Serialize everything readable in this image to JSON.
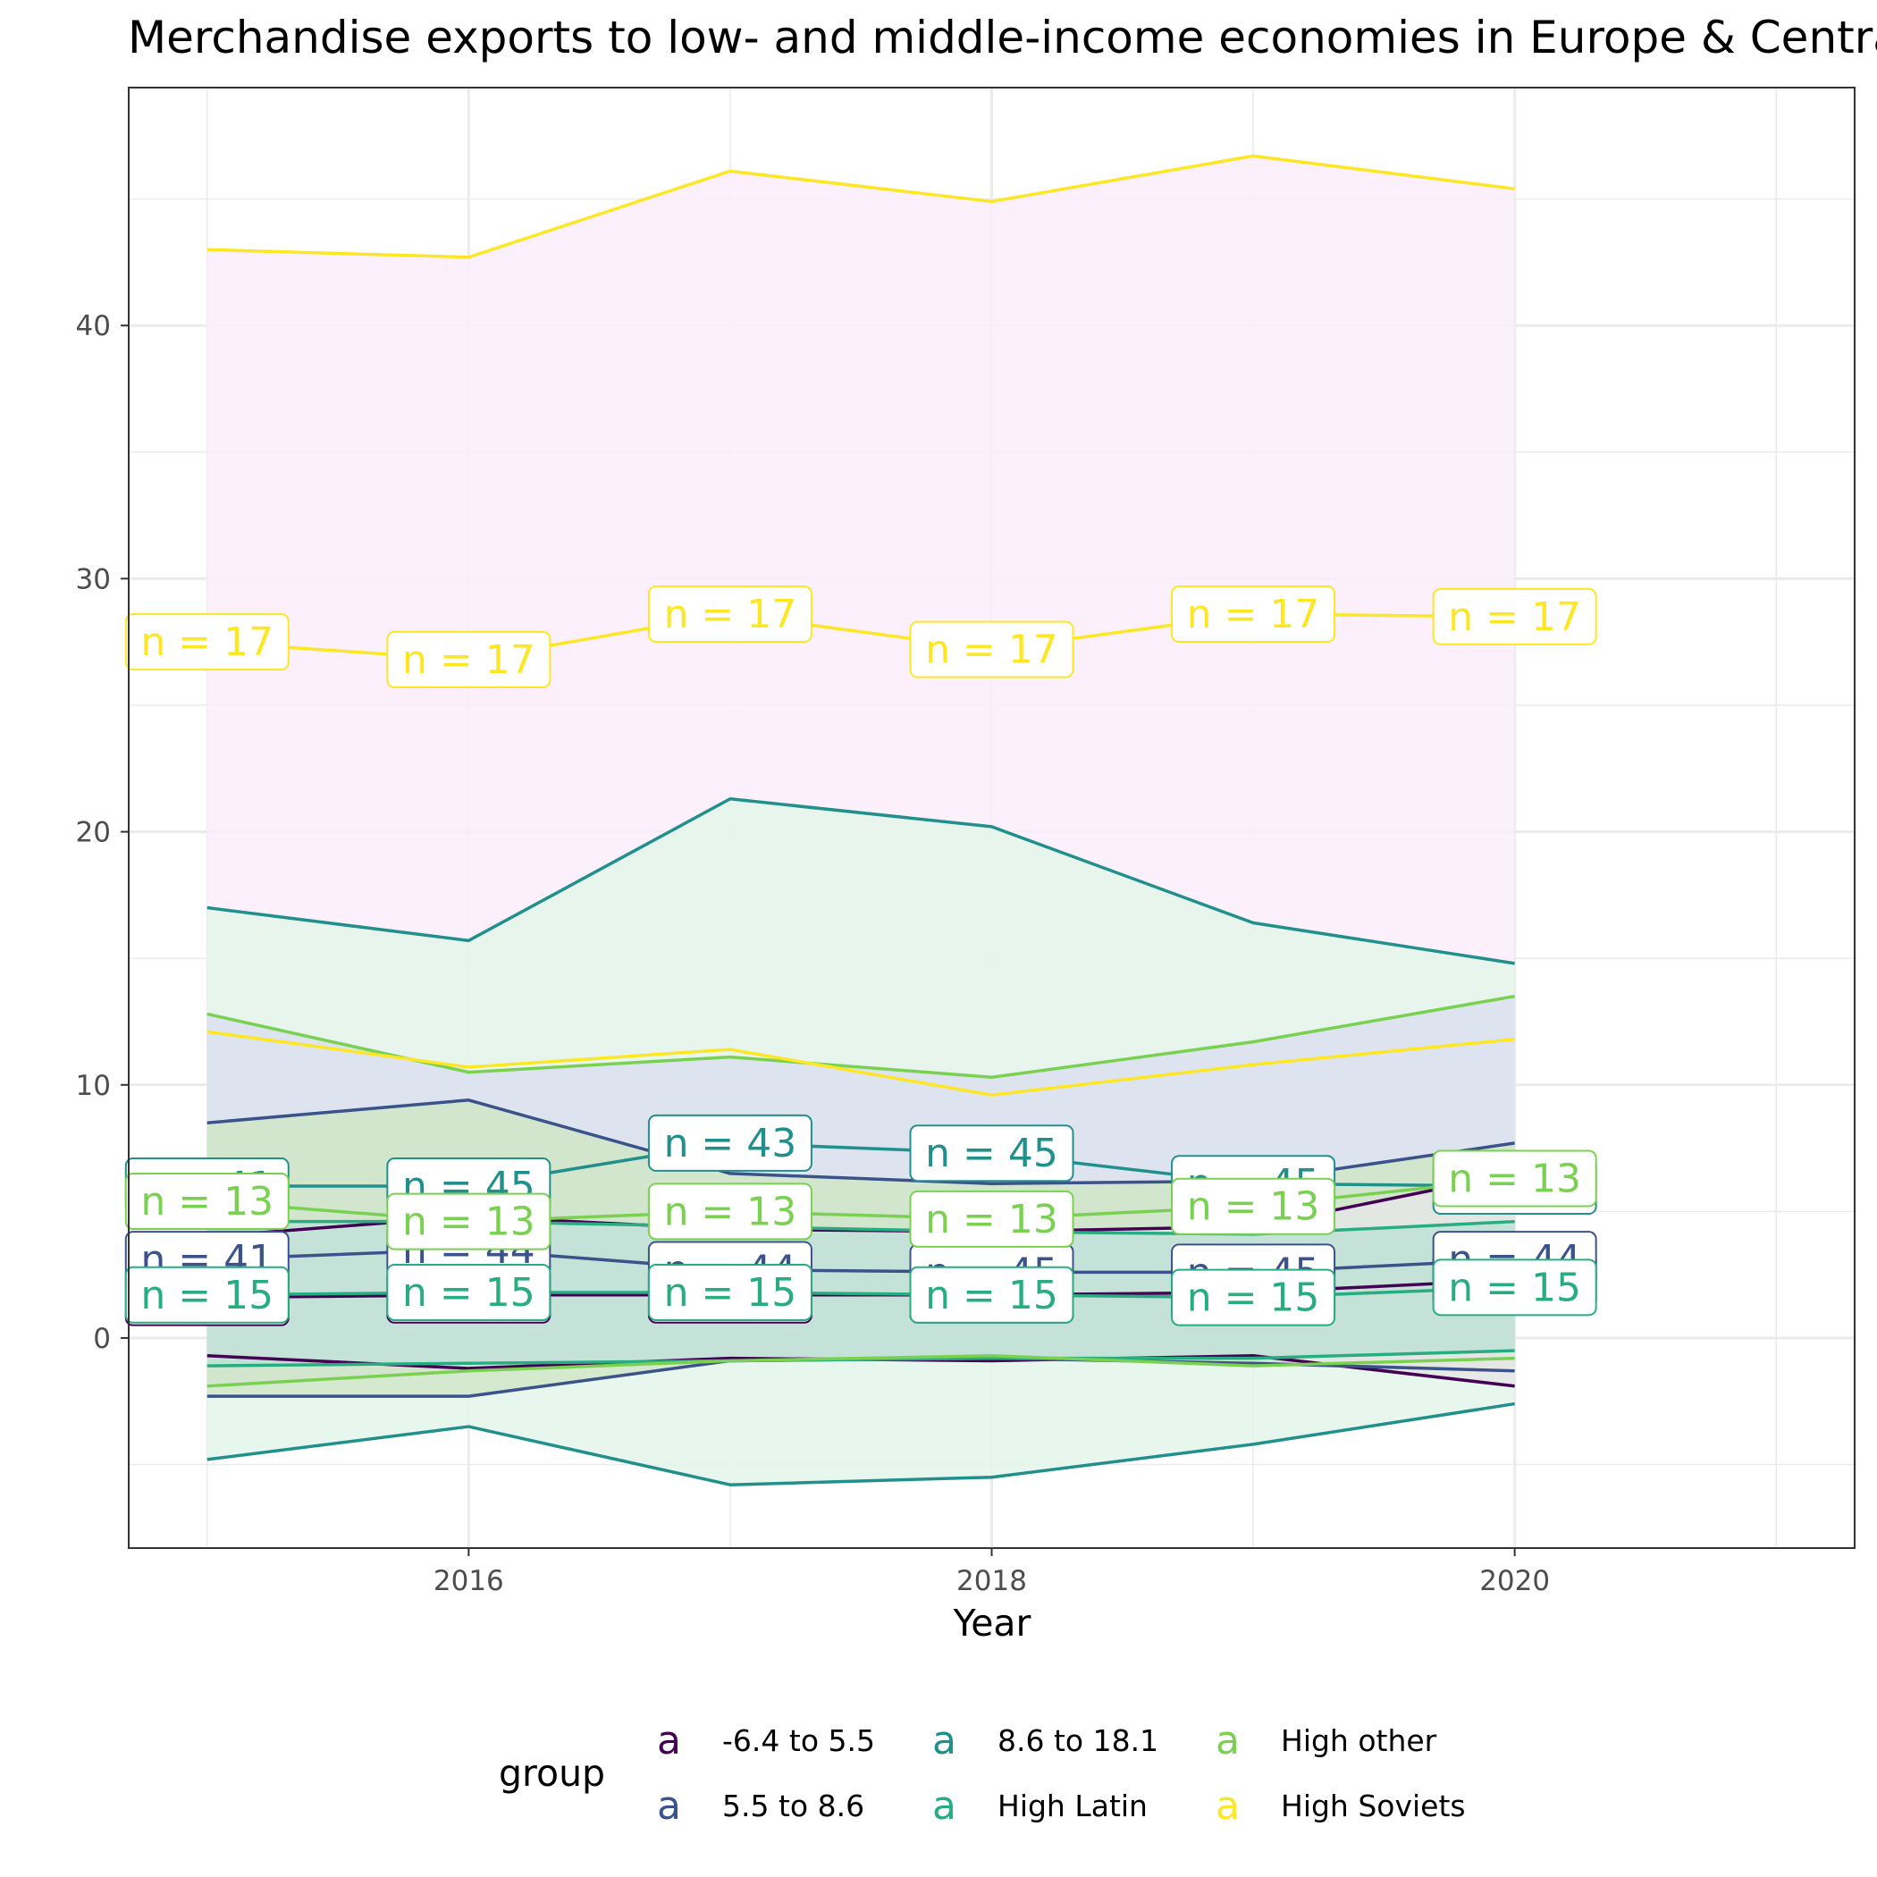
{
  "chart_data": {
    "type": "line",
    "title": "Merchandise exports to low- and middle-income economies in Europe & Central Asia (% of total merchandise exports)",
    "xlabel": "Year",
    "ylabel": "",
    "xlim": [
      2014.7,
      2021.3
    ],
    "ylim": [
      -8.3,
      49.4
    ],
    "x_ticks": [
      2016,
      2018,
      2020
    ],
    "y_ticks": [
      0,
      10,
      20,
      30,
      40
    ],
    "grid": true,
    "legend": {
      "title": "group",
      "position": "bottom",
      "key_glyph": "a"
    },
    "x": [
      2015,
      2016,
      2017,
      2018,
      2019,
      2020
    ],
    "series": [
      {
        "name": "-6.4 to 5.5",
        "color": "#440154",
        "ribbon_fill": "#e6e6e6",
        "mean": [
          1.6,
          1.7,
          1.7,
          1.7,
          1.8,
          2.3
        ],
        "upper": [
          4.0,
          4.8,
          4.3,
          4.2,
          4.4,
          6.5
        ],
        "lower": [
          -0.7,
          -1.2,
          -0.8,
          -0.9,
          -0.7,
          -1.9
        ],
        "n_labels": [
          "n = 41",
          "n = 44",
          "n = 44",
          "n = 45",
          "n = 45",
          "n = 44"
        ]
      },
      {
        "name": "5.5 to 8.6",
        "color": "#3b528b",
        "ribbon_fill": "#d0e6c8",
        "mean": [
          3.1,
          3.5,
          2.7,
          2.6,
          2.6,
          3.1
        ],
        "upper": [
          8.5,
          9.4,
          6.5,
          6.1,
          6.2,
          7.7
        ],
        "lower": [
          -2.3,
          -2.3,
          -0.9,
          -0.8,
          -1.0,
          -1.3
        ],
        "n_labels": [
          "n = 41",
          "n = 44",
          "n = 44",
          "n = 45",
          "n = 45",
          "n = 44"
        ]
      },
      {
        "name": "8.6 to 18.1",
        "color": "#21908d",
        "ribbon_fill": "#e3f6ea",
        "mean": [
          6.0,
          6.0,
          7.7,
          7.3,
          6.1,
          6.0
        ],
        "upper": [
          17.0,
          15.7,
          21.3,
          20.2,
          16.4,
          14.8
        ],
        "lower": [
          -4.8,
          -3.5,
          -5.8,
          -5.5,
          -4.2,
          -2.6
        ],
        "n_labels": [
          "n = 41",
          "n = 45",
          "n = 43",
          "n = 45",
          "n = 45",
          "n = 44"
        ]
      },
      {
        "name": "High Latin",
        "color": "#27ad81",
        "ribbon_fill": "#bfe0d6",
        "mean": [
          1.7,
          1.8,
          1.8,
          1.7,
          1.6,
          2.0
        ],
        "upper": [
          4.6,
          4.6,
          4.4,
          4.2,
          4.1,
          4.6
        ],
        "lower": [
          -1.1,
          -1.0,
          -0.9,
          -0.8,
          -0.8,
          -0.5
        ],
        "n_labels": [
          "n = 15",
          "n = 15",
          "n = 15",
          "n = 15",
          "n = 15",
          "n = 15"
        ]
      },
      {
        "name": "High other",
        "color": "#7ad151",
        "ribbon_fill": "#dce0ee",
        "mean": [
          5.4,
          4.6,
          5.0,
          4.7,
          5.2,
          6.3
        ],
        "upper": [
          12.8,
          10.5,
          11.1,
          10.3,
          11.7,
          13.5
        ],
        "lower": [
          -1.9,
          -1.3,
          -0.9,
          -0.7,
          -1.1,
          -0.8
        ],
        "n_labels": [
          "n = 13",
          "n = 13",
          "n = 13",
          "n = 13",
          "n = 13",
          "n = 13"
        ]
      },
      {
        "name": "High Soviets",
        "color": "#fde725",
        "ribbon_fill": "#fcedfb",
        "mean": [
          27.5,
          26.8,
          28.6,
          27.2,
          28.6,
          28.5
        ],
        "upper": [
          43.0,
          42.7,
          46.1,
          44.9,
          46.7,
          45.4
        ],
        "lower": [
          12.1,
          10.7,
          11.4,
          9.6,
          10.8,
          11.8
        ],
        "n_labels": [
          "n = 17",
          "n = 17",
          "n = 17",
          "n = 17",
          "n = 17",
          "n = 17"
        ]
      }
    ]
  }
}
